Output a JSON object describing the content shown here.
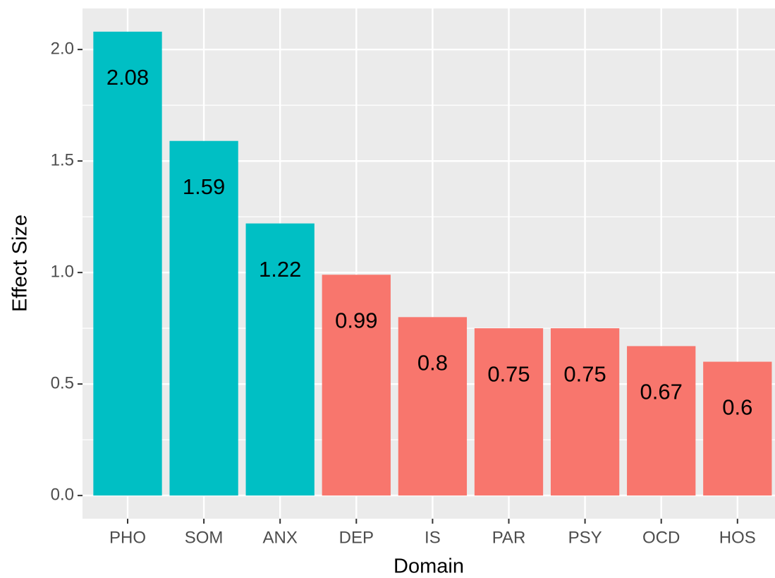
{
  "chart_data": {
    "type": "bar",
    "x_label": "Domain",
    "y_label": "Effect Size",
    "categories": [
      "PHO",
      "SOM",
      "ANX",
      "DEP",
      "IS",
      "PAR",
      "PSY",
      "OCD",
      "HOS"
    ],
    "values": [
      2.08,
      1.59,
      1.22,
      0.99,
      0.8,
      0.75,
      0.75,
      0.67,
      0.6
    ],
    "colors": [
      "#00BFC4",
      "#00BFC4",
      "#00BFC4",
      "#F8766D",
      "#F8766D",
      "#F8766D",
      "#F8766D",
      "#F8766D",
      "#F8766D"
    ],
    "ylim": [
      -0.104,
      2.184
    ],
    "yticks": [
      {
        "value": 0,
        "label": "0.0"
      },
      {
        "value": 0.5,
        "label": "0.5"
      },
      {
        "value": 1,
        "label": "1.0"
      },
      {
        "value": 1.5,
        "label": "1.5"
      },
      {
        "value": 2,
        "label": "2.0"
      }
    ],
    "minor_yticks": [
      0.25,
      0.75,
      1.25,
      1.75
    ],
    "grid": true
  }
}
